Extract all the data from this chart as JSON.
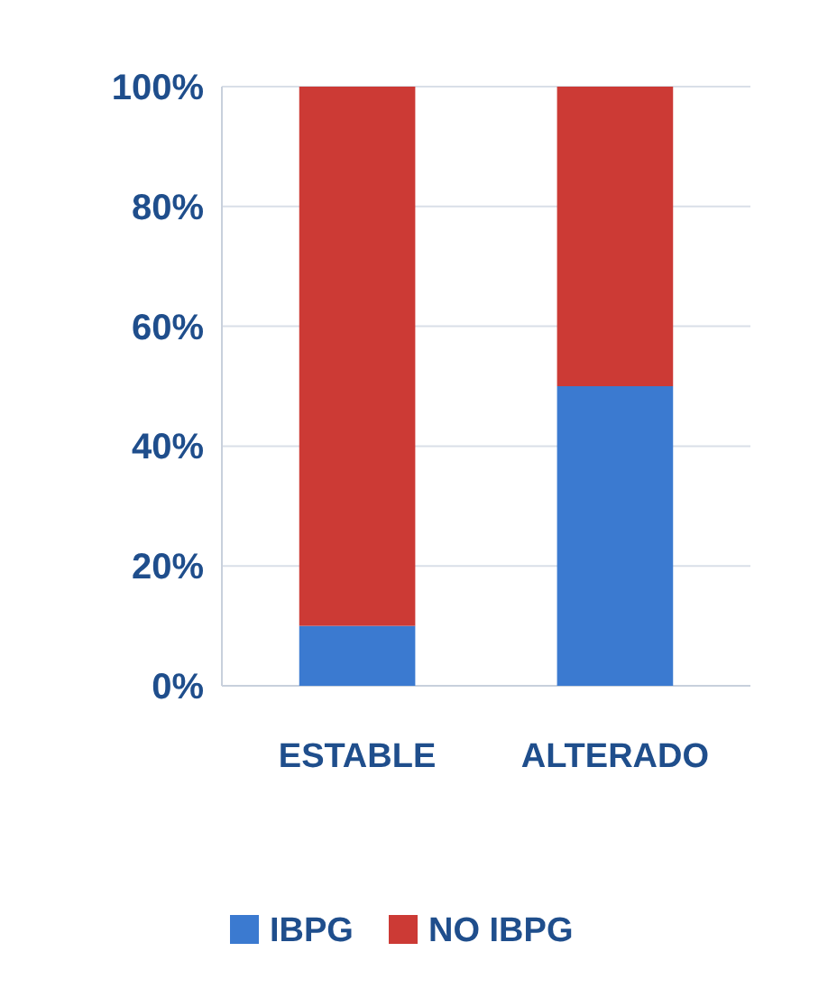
{
  "chart_data": {
    "type": "bar",
    "stacked": true,
    "categories": [
      "ESTABLE",
      "ALTERADO"
    ],
    "series": [
      {
        "name": "IBPG",
        "color": "#3b7ad0",
        "values": [
          10,
          50
        ]
      },
      {
        "name": "NO IBPG",
        "color": "#cc3a35",
        "values": [
          90,
          50
        ]
      }
    ],
    "ylim": [
      0,
      100
    ],
    "yticks": [
      {
        "value": 0,
        "label": "0%"
      },
      {
        "value": 20,
        "label": "20%"
      },
      {
        "value": 40,
        "label": "40%"
      },
      {
        "value": 60,
        "label": "60%"
      },
      {
        "value": 80,
        "label": "80%"
      },
      {
        "value": 100,
        "label": "100%"
      }
    ],
    "grid": "y",
    "legend": "bottom"
  }
}
